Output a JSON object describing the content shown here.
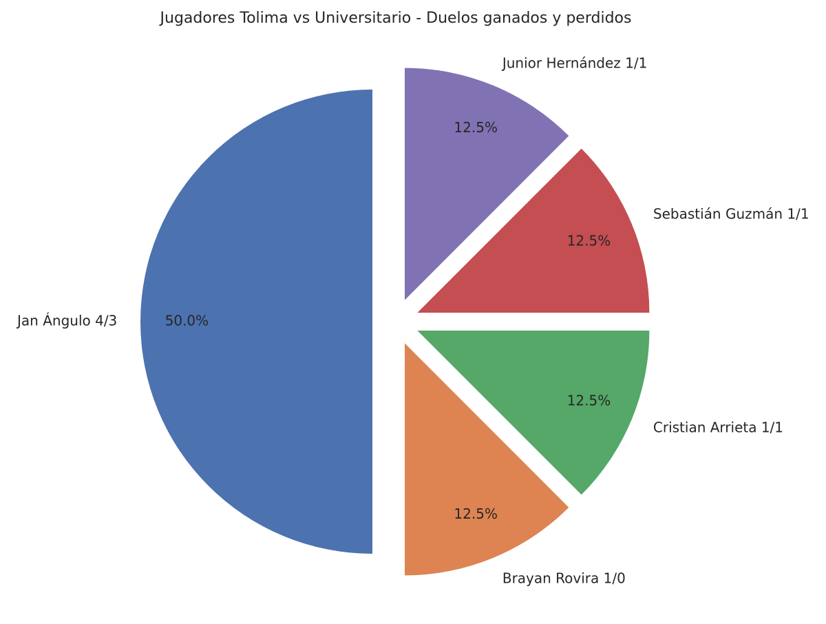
{
  "chart_data": {
    "type": "pie",
    "title": "Jugadores Tolima vs Universitario - Duelos ganados y perdidos",
    "categories": [
      "Jan Ángulo 4/3",
      "Brayan Rovira 1/0",
      "Cristian Arrieta 1/1",
      "Sebastián Guzmán 1/1",
      "Junior Hernández 1/1"
    ],
    "values": [
      50,
      12.5,
      12.5,
      12.5,
      12.5
    ],
    "value_labels": [
      "50.0%",
      "12.5%",
      "12.5%",
      "12.5%",
      "12.5%"
    ],
    "colors": [
      "#4c72b0",
      "#dd8452",
      "#55a868",
      "#c44e52",
      "#8172b3"
    ]
  }
}
